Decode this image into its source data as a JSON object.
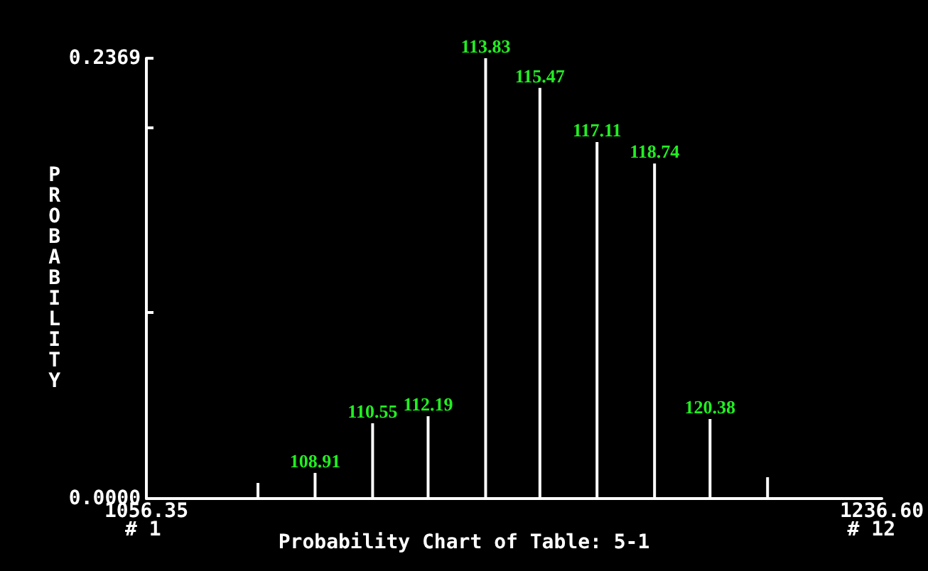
{
  "chart_data": {
    "type": "bar",
    "title": "Probability Chart of Table: 5-1",
    "ylabel": "PROBABILITY",
    "x": [
      1083.7,
      1097.7,
      1111.8,
      1125.4,
      1139.5,
      1152.8,
      1166.8,
      1180.9,
      1194.5,
      1208.6
    ],
    "values": [
      0.0084,
      0.0138,
      0.0405,
      0.0443,
      0.2369,
      0.2209,
      0.1918,
      0.1803,
      0.0428,
      0.0115
    ],
    "color": "#ffffff",
    "xlim": [
      1056.35,
      1236.6
    ],
    "xticks": [
      {
        "value": 1056.35,
        "label": "1056.35"
      },
      {
        "value": 1236.6,
        "label": "1236.60"
      }
    ],
    "ylim": [
      0,
      0.2369
    ],
    "yticks": [
      {
        "value": 0,
        "label": "0.0000"
      },
      {
        "value": 0.1,
        "label": null
      },
      {
        "value": 0.2,
        "label": null
      },
      {
        "value": 0.2369,
        "label": "0.2369"
      }
    ],
    "annotations": [
      "# 1",
      "# 12",
      {
        "text": "108.91",
        "x": 1097.7,
        "y": 0.0138
      },
      {
        "text": "110.55",
        "x": 1111.8,
        "y": 0.0405
      },
      {
        "text": "112.19",
        "x": 1125.4,
        "y": 0.0443
      },
      {
        "text": "113.83",
        "x": 1139.5,
        "y": 0.2369
      },
      {
        "text": "115.47",
        "x": 1152.8,
        "y": 0.2209
      },
      {
        "text": "117.11",
        "x": 1166.8,
        "y": 0.1918
      },
      {
        "text": "118.74",
        "x": 1180.9,
        "y": 0.1803
      },
      {
        "text": "120.38",
        "x": 1194.5,
        "y": 0.0428
      }
    ]
  }
}
